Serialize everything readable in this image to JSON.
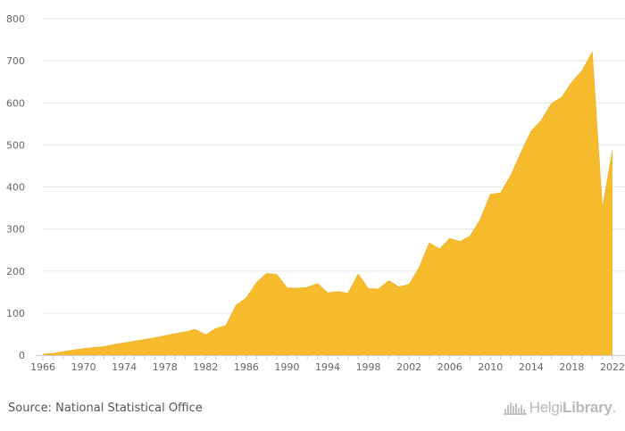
{
  "chart_data": {
    "type": "area",
    "title": "",
    "xlabel": "",
    "ylabel": "",
    "x": [
      1966,
      1967,
      1968,
      1969,
      1970,
      1971,
      1972,
      1973,
      1974,
      1975,
      1976,
      1977,
      1978,
      1979,
      1980,
      1981,
      1982,
      1983,
      1984,
      1985,
      1986,
      1987,
      1988,
      1989,
      1990,
      1991,
      1992,
      1993,
      1994,
      1995,
      1996,
      1997,
      1998,
      1999,
      2000,
      2001,
      2002,
      2003,
      2004,
      2005,
      2006,
      2007,
      2008,
      2009,
      2010,
      2011,
      2012,
      2013,
      2014,
      2015,
      2016,
      2017,
      2018,
      2019,
      2020,
      2021,
      2022
    ],
    "series": [
      {
        "values": [
          2,
          4,
          8,
          12,
          15,
          18,
          20,
          25,
          29,
          33,
          37,
          41,
          46,
          51,
          55,
          61,
          48,
          63,
          70,
          118,
          136,
          172,
          194,
          191,
          160,
          159,
          161,
          170,
          148,
          151,
          147,
          192,
          158,
          157,
          177,
          162,
          168,
          208,
          267,
          252,
          277,
          270,
          283,
          322,
          382,
          386,
          427,
          481,
          532,
          558,
          598,
          613,
          649,
          676,
          720,
          347,
          486
        ]
      }
    ],
    "xticks": [
      "1966",
      "1970",
      "1974",
      "1978",
      "1982",
      "1986",
      "1990",
      "1994",
      "1998",
      "2002",
      "2006",
      "2010",
      "2014",
      "2018",
      "2022"
    ],
    "yticks": [
      "0",
      "100",
      "200",
      "300",
      "400",
      "500",
      "600",
      "700",
      "800"
    ],
    "ylim": [
      0,
      800
    ],
    "xlim": [
      1966,
      2022
    ],
    "grid": true,
    "fill_color": "#f6bc2e",
    "line_color": "#f0b429",
    "grid_color": "#e6e6e6"
  },
  "footer": {
    "source": "Source: National Statistical Office",
    "brand_light": "Helgi",
    "brand_bold": "Library",
    "brand_suffix": "."
  }
}
